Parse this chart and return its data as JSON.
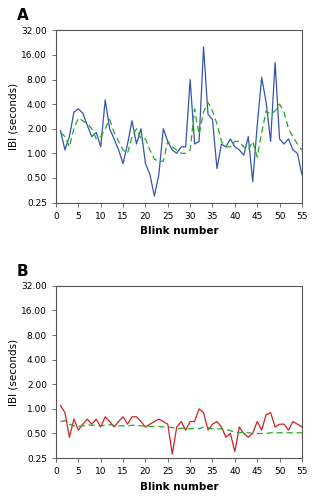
{
  "panel_A": {
    "label": "A",
    "observed_color": "#3355aa",
    "predicted_color": "#22aa22",
    "observed": [
      1.9,
      1.1,
      1.6,
      3.2,
      3.5,
      3.1,
      2.2,
      1.6,
      1.8,
      1.2,
      4.5,
      2.0,
      1.5,
      1.1,
      0.75,
      1.3,
      2.5,
      1.3,
      2.0,
      0.75,
      0.55,
      0.3,
      0.55,
      2.0,
      1.4,
      1.1,
      1.0,
      1.2,
      1.2,
      8.0,
      1.3,
      1.4,
      20.0,
      3.0,
      2.6,
      0.65,
      1.3,
      1.2,
      1.5,
      1.2,
      1.1,
      0.95,
      1.6,
      0.45,
      2.2,
      8.5,
      4.2,
      1.4,
      13.0,
      1.5,
      1.3,
      1.5,
      1.1,
      1.0,
      0.55
    ],
    "predicted": [
      1.8,
      1.6,
      1.2,
      2.0,
      2.7,
      2.5,
      2.3,
      2.0,
      1.5,
      1.6,
      2.0,
      2.6,
      1.8,
      1.4,
      1.1,
      1.0,
      1.6,
      2.0,
      1.5,
      1.5,
      1.1,
      0.85,
      0.8,
      0.8,
      1.4,
      1.2,
      1.1,
      1.0,
      1.0,
      1.1,
      3.5,
      1.7,
      3.2,
      4.2,
      3.3,
      2.3,
      1.4,
      1.2,
      1.2,
      1.4,
      1.4,
      1.2,
      1.1,
      1.4,
      0.9,
      1.8,
      3.3,
      3.0,
      3.3,
      4.0,
      3.2,
      2.0,
      1.6,
      1.3,
      1.1
    ],
    "ylim": [
      0.25,
      32.0
    ],
    "yticks": [
      0.25,
      0.5,
      1.0,
      2.0,
      4.0,
      8.0,
      16.0,
      32.0
    ],
    "ytick_labels": [
      "0.25",
      "0.50",
      "1.00",
      "2.00",
      "4.00",
      "8.00",
      "16.00",
      "32.00"
    ],
    "xlim": [
      0,
      55
    ],
    "xticks": [
      0,
      5,
      10,
      15,
      20,
      25,
      30,
      35,
      40,
      45,
      50,
      55
    ],
    "xlabel": "Blink number",
    "ylabel": "IBI (seconds)"
  },
  "panel_B": {
    "label": "B",
    "observed_color": "#cc2222",
    "predicted_color": "#22aa22",
    "observed": [
      1.1,
      0.9,
      0.45,
      0.75,
      0.55,
      0.65,
      0.75,
      0.65,
      0.75,
      0.6,
      0.8,
      0.7,
      0.6,
      0.7,
      0.8,
      0.65,
      0.8,
      0.8,
      0.7,
      0.6,
      0.65,
      0.7,
      0.75,
      0.7,
      0.65,
      0.28,
      0.6,
      0.7,
      0.55,
      0.7,
      0.7,
      1.0,
      0.9,
      0.55,
      0.65,
      0.7,
      0.6,
      0.45,
      0.5,
      0.3,
      0.6,
      0.5,
      0.45,
      0.5,
      0.7,
      0.55,
      0.85,
      0.9,
      0.6,
      0.65,
      0.65,
      0.55,
      0.7,
      0.65,
      0.6
    ],
    "predicted": [
      0.7,
      0.72,
      0.65,
      0.62,
      0.61,
      0.62,
      0.64,
      0.63,
      0.63,
      0.62,
      0.63,
      0.64,
      0.63,
      0.62,
      0.62,
      0.62,
      0.63,
      0.63,
      0.62,
      0.61,
      0.61,
      0.61,
      0.61,
      0.6,
      0.6,
      0.59,
      0.57,
      0.58,
      0.58,
      0.57,
      0.58,
      0.57,
      0.6,
      0.59,
      0.57,
      0.57,
      0.57,
      0.56,
      0.54,
      0.52,
      0.51,
      0.52,
      0.51,
      0.5,
      0.5,
      0.5,
      0.5,
      0.51,
      0.51,
      0.51,
      0.51,
      0.51,
      0.51,
      0.51,
      0.51
    ],
    "ylim": [
      0.25,
      32.0
    ],
    "yticks": [
      0.25,
      0.5,
      1.0,
      2.0,
      4.0,
      8.0,
      16.0,
      32.0
    ],
    "ytick_labels": [
      "0.25",
      "0.50",
      "1.00",
      "2.00",
      "4.00",
      "8.00",
      "16.00",
      "32.00"
    ],
    "xlim": [
      0,
      55
    ],
    "xticks": [
      0,
      5,
      10,
      15,
      20,
      25,
      30,
      35,
      40,
      45,
      50,
      55
    ],
    "xlabel": "Blink number",
    "ylabel": "IBI (seconds)"
  },
  "fig_width": 3.16,
  "fig_height": 5.0,
  "dpi": 100
}
